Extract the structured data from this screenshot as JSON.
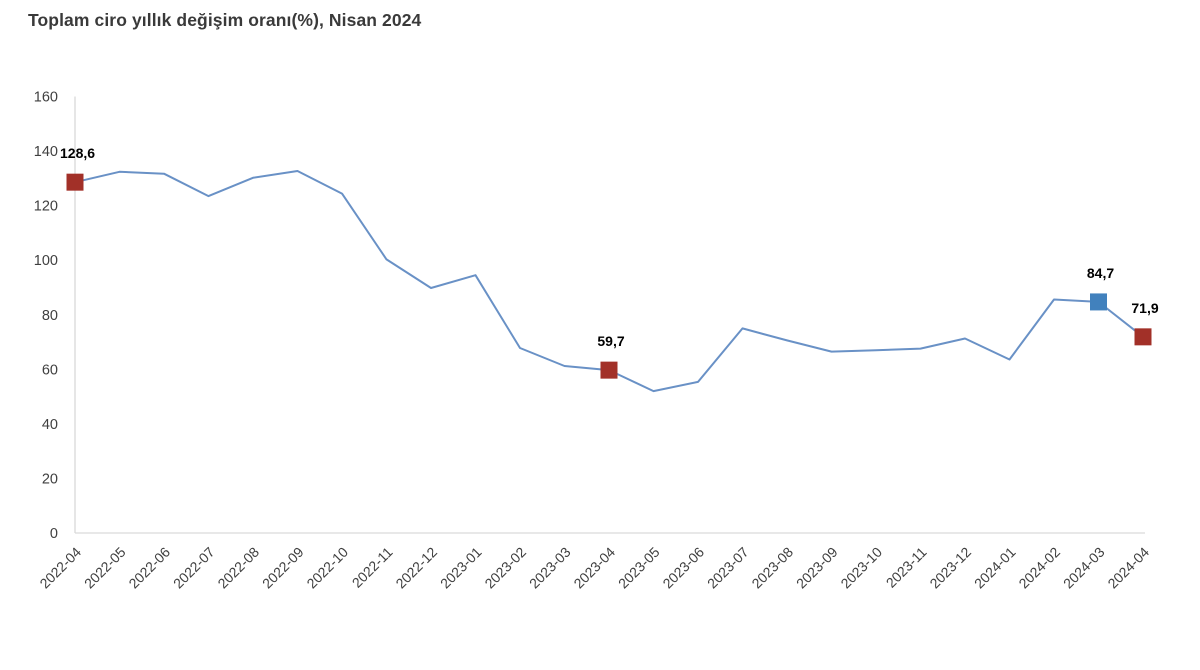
{
  "title": "Toplam ciro yıllık değişim oranı(%), Nisan 2024",
  "colors": {
    "line": "#6991c6",
    "marker_red": "#a23028",
    "marker_blue": "#4181bd",
    "axis": "#d9d9d9",
    "tick_text": "#3f3f3f",
    "title_text": "#3a3a3a",
    "background": "#ffffff"
  },
  "chart_data": {
    "type": "line",
    "title": "Toplam ciro yıllık değişim oranı(%), Nisan 2024",
    "xlabel": "",
    "ylabel": "",
    "ylim": [
      0,
      160
    ],
    "yticks": [
      0,
      20,
      40,
      60,
      80,
      100,
      120,
      140,
      160
    ],
    "grid": false,
    "legend": "none",
    "x": [
      "2022-04",
      "2022-05",
      "2022-06",
      "2022-07",
      "2022-08",
      "2022-09",
      "2022-10",
      "2022-11",
      "2022-12",
      "2023-01",
      "2023-02",
      "2023-03",
      "2023-04",
      "2023-05",
      "2023-06",
      "2023-07",
      "2023-08",
      "2023-09",
      "2023-10",
      "2023-11",
      "2023-12",
      "2024-01",
      "2024-02",
      "2024-03",
      "2024-04"
    ],
    "series": [
      {
        "name": "Toplam ciro yıllık değişim oranı (%)",
        "values": [
          128.6,
          132.4,
          131.7,
          123.5,
          130.2,
          132.7,
          124.4,
          100.3,
          89.8,
          94.5,
          67.8,
          61.2,
          59.7,
          52.0,
          55.4,
          75.0,
          70.6,
          66.5,
          67.0,
          67.6,
          71.3,
          63.6,
          85.6,
          84.7,
          71.9
        ]
      }
    ],
    "highlighted_points": [
      {
        "x": "2022-04",
        "value": 128.6,
        "label": "128,6",
        "color": "#a23028",
        "label_anchor": "start"
      },
      {
        "x": "2023-04",
        "value": 59.7,
        "label": "59,7",
        "color": "#a23028",
        "label_anchor": "middle"
      },
      {
        "x": "2024-03",
        "value": 84.7,
        "label": "84,7",
        "color": "#4181bd",
        "label_anchor": "middle"
      },
      {
        "x": "2024-04",
        "value": 71.9,
        "label": "71,9",
        "color": "#a23028",
        "label_anchor": "middle"
      }
    ]
  }
}
